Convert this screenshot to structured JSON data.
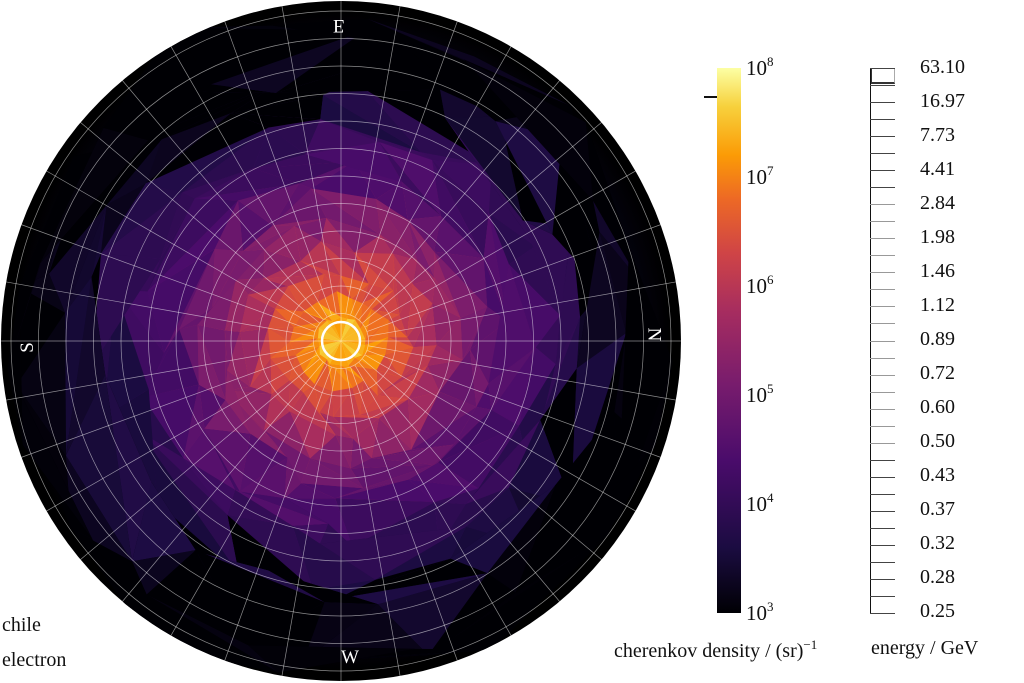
{
  "chart_data": {
    "type": "heatmap",
    "subtype": "polar sky map (triangulated)",
    "title": "",
    "site": "chile",
    "particle": "electron",
    "directions": {
      "top": "E",
      "bottom": "W",
      "left": "S",
      "right": "N"
    },
    "grid": {
      "rings": true,
      "spokes_deg": 10,
      "ring_count": 12
    },
    "center_marker": "white ring at pointing center",
    "density_profile_log10": [
      {
        "r_frac": 0.0,
        "value": 7.8
      },
      {
        "r_frac": 0.1,
        "value": 7.0
      },
      {
        "r_frac": 0.2,
        "value": 6.3
      },
      {
        "r_frac": 0.3,
        "value": 5.6
      },
      {
        "r_frac": 0.4,
        "value": 5.0
      },
      {
        "r_frac": 0.5,
        "value": 4.5
      },
      {
        "r_frac": 0.6,
        "value": 4.1
      },
      {
        "r_frac": 0.7,
        "value": 3.7
      },
      {
        "r_frac": 0.8,
        "value": 3.4
      },
      {
        "r_frac": 0.9,
        "value": 3.1
      },
      {
        "r_frac": 1.0,
        "value": 3.0
      }
    ],
    "colorbar": {
      "label": "cherenkov density / (sr)",
      "label_exponent": "−1",
      "scale": "log",
      "colormap": "inferno",
      "range": [
        1000,
        100000000
      ],
      "ticks": [
        {
          "base": "10",
          "exp": "8"
        },
        {
          "base": "10",
          "exp": "7"
        },
        {
          "base": "10",
          "exp": "6"
        },
        {
          "base": "10",
          "exp": "5"
        },
        {
          "base": "10",
          "exp": "4"
        },
        {
          "base": "10",
          "exp": "3"
        }
      ],
      "marker_value_log10": 7.8
    },
    "energy_bar": {
      "label": "energy / GeV",
      "bins": [
        "63.10",
        "16.97",
        "7.73",
        "4.41",
        "2.84",
        "1.98",
        "1.46",
        "1.12",
        "0.89",
        "0.72",
        "0.60",
        "0.50",
        "0.43",
        "0.37",
        "0.32",
        "0.28",
        "0.25"
      ],
      "selected_bin": "63.10"
    }
  },
  "labels": {
    "site": "chile",
    "particle": "electron",
    "cbar_title": "cherenkov density / (sr)",
    "cbar_title_exp": "−1",
    "energy_title": "energy / GeV"
  },
  "colors": {
    "background": "#000000",
    "grid": "#ffffff",
    "low": "#000004",
    "mid": "#781c6d",
    "high": "#fcffa4"
  }
}
